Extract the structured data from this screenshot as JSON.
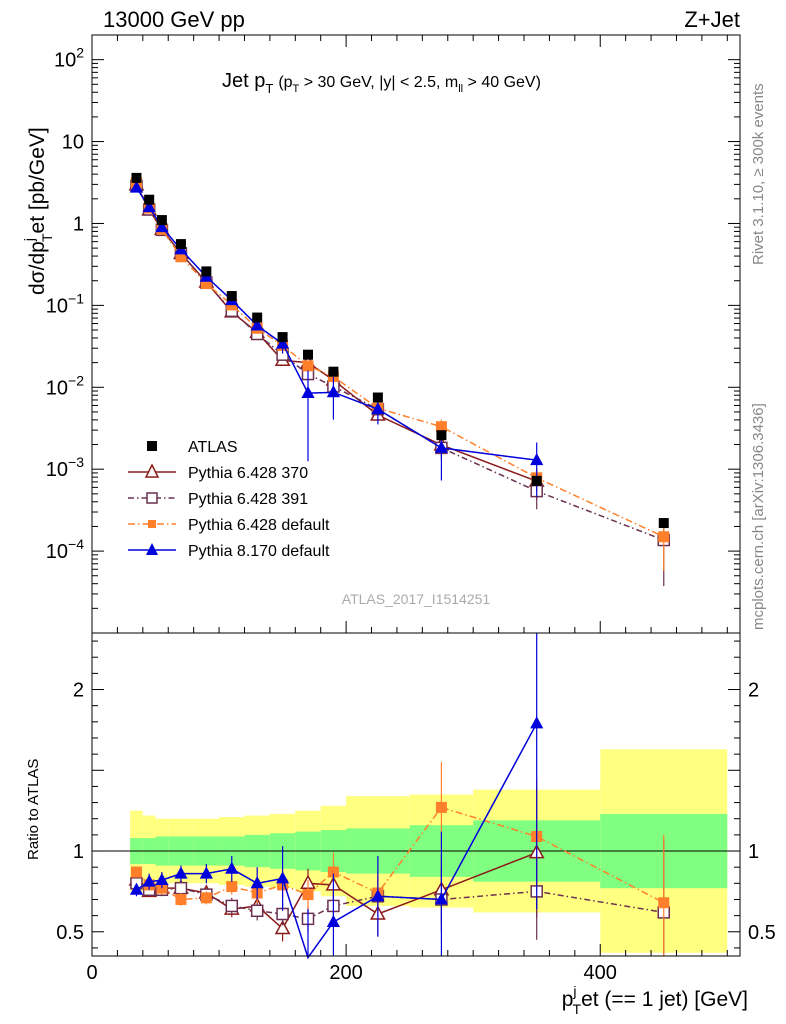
{
  "header": {
    "left": "13000 GeV pp",
    "right": "Z+Jet"
  },
  "side_labels": {
    "top": "Rivet 3.1.10, ≥ 300k events",
    "bottom": "mcplots.cern.ch [arXiv:1306.3436]"
  },
  "plot_title": {
    "main": "Jet p",
    "main_sub": "T",
    "cut_open": "(p",
    "cut_sub": "T",
    "cut_rest": " > 30 GeV, |y| < 2.5, m",
    "cut_sub2": "ll",
    "cut_end": " > 40 GeV)"
  },
  "analysis_id": "ATLAS_2017_I1514251",
  "axes": {
    "ylabel_main": "dσ/dp",
    "ylabel_sup": "j",
    "ylabel_sub": "T",
    "ylabel_rest": "et [pb/GeV]",
    "ylabel_ratio": "Ratio to ATLAS",
    "xlabel_p": "p",
    "xlabel_sup": "j",
    "xlabel_sub": "T",
    "xlabel_rest": "et (== 1 jet) [GeV]"
  },
  "chart_data": {
    "type": "scatter",
    "title": "Jet pT (pT > 30 GeV, |y| < 2.5, mll > 40 GeV)",
    "xlabel": "pTjet (== 1 jet) [GeV]",
    "ylabel": "dσ/dpTjet [pb/GeV]",
    "xlim": [
      0,
      510
    ],
    "ylim": [
      1e-05,
      200
    ],
    "yscale": "log",
    "ratio_ylim": [
      0.35,
      2.35
    ],
    "x_ticks": [
      0,
      200,
      400
    ],
    "y_ticks": [
      "10^-4",
      "10^-3",
      "10^-2",
      "10^-1",
      "1",
      "10",
      "10^2"
    ],
    "ratio_ticks": [
      0.5,
      1,
      2
    ],
    "legend_position": "bottom-left",
    "bin_edges": [
      30,
      40,
      50,
      60,
      80,
      100,
      120,
      140,
      160,
      180,
      200,
      250,
      300,
      400,
      500
    ],
    "x": [
      35,
      45,
      55,
      70,
      90,
      110,
      130,
      150,
      170,
      190,
      225,
      275,
      350,
      450
    ],
    "data": {
      "name": "ATLAS",
      "color": "#000000",
      "values": [
        3.6,
        1.95,
        1.1,
        0.56,
        0.26,
        0.13,
        0.071,
        0.041,
        0.025,
        0.0155,
        0.0075,
        0.0026,
        0.00072,
        0.00022
      ],
      "band_inner": [
        0.08,
        0.08,
        0.09,
        0.09,
        0.09,
        0.09,
        0.1,
        0.11,
        0.12,
        0.13,
        0.14,
        0.16,
        0.19,
        0.23
      ],
      "band_outer": [
        0.25,
        0.22,
        0.2,
        0.2,
        0.2,
        0.21,
        0.22,
        0.23,
        0.25,
        0.28,
        0.34,
        0.35,
        0.38,
        0.63
      ]
    },
    "series": [
      {
        "name": "Pythia 6.428 370",
        "color": "#8b1a1a",
        "marker": "triangle-open",
        "dash": "",
        "ratio": [
          0.82,
          0.75,
          0.77,
          0.77,
          0.74,
          0.64,
          0.66,
          0.52,
          0.8,
          0.79,
          0.61,
          0.76,
          0.99,
          null
        ],
        "ratio_err": [
          0.03,
          0.03,
          0.03,
          0.04,
          0.04,
          0.05,
          0.06,
          0.08,
          0.09,
          0.1,
          0.14,
          0.22,
          0.4,
          null
        ]
      },
      {
        "name": "Pythia 6.428 391",
        "color": "#6b3050",
        "marker": "square-open",
        "dash": "6,3,1.5,3",
        "ratio": [
          0.8,
          0.76,
          0.76,
          0.77,
          0.73,
          0.66,
          0.63,
          0.61,
          0.58,
          0.66,
          0.72,
          0.7,
          0.75,
          0.62
        ],
        "ratio_err": [
          0.03,
          0.03,
          0.04,
          0.04,
          0.04,
          0.05,
          0.06,
          0.07,
          0.08,
          0.1,
          0.12,
          0.2,
          0.3,
          0.45
        ]
      },
      {
        "name": "Pythia 6.428 default",
        "color": "#ff7f2a",
        "marker": "square-filled",
        "dash": "7,3,1.5,3",
        "ratio": [
          0.87,
          0.79,
          0.77,
          0.7,
          0.71,
          0.78,
          0.74,
          0.79,
          0.73,
          0.87,
          0.74,
          1.27,
          1.09,
          0.68
        ],
        "ratio_err": [
          0.03,
          0.03,
          0.04,
          0.04,
          0.04,
          0.05,
          0.06,
          0.08,
          0.09,
          0.12,
          0.14,
          0.28,
          0.35,
          0.42
        ]
      },
      {
        "name": "Pythia 8.170 default",
        "color": "#0000dd",
        "marker": "triangle-filled",
        "dash": "",
        "ratio": [
          0.76,
          0.81,
          0.82,
          0.86,
          0.86,
          0.89,
          0.8,
          0.83,
          0.34,
          0.56,
          0.72,
          0.7,
          1.79,
          null
        ],
        "ratio_err": [
          0.04,
          0.05,
          0.05,
          0.05,
          0.06,
          0.08,
          0.1,
          0.2,
          0.3,
          0.3,
          0.25,
          0.42,
          1.15,
          null
        ]
      }
    ]
  }
}
